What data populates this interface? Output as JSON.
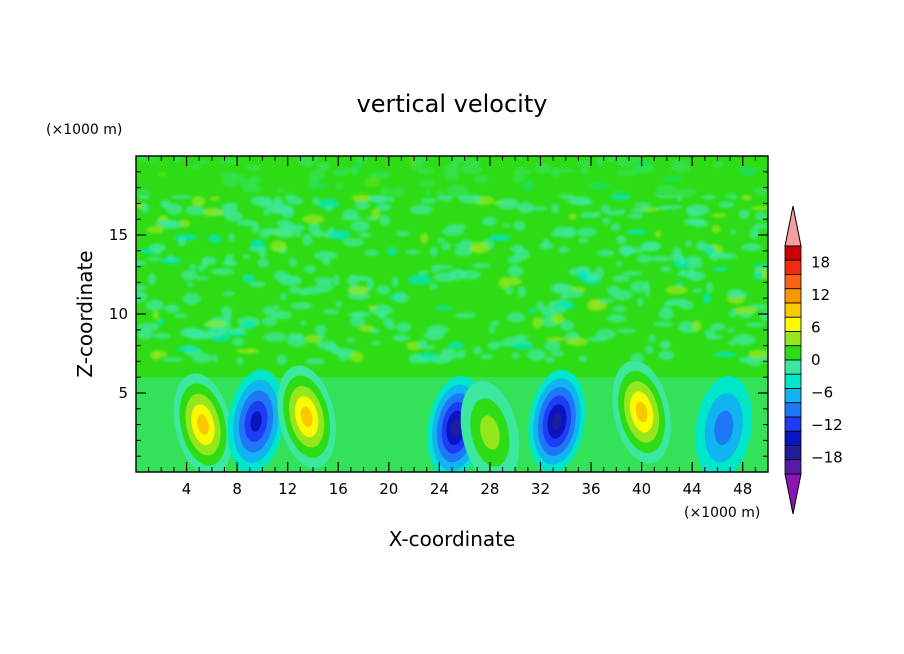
{
  "chart_data": {
    "type": "heatmap",
    "title": "vertical velocity",
    "xlabel": "X-coordinate",
    "ylabel": "Z-coordinate",
    "x_unit": "(×1000 m)",
    "y_unit": "(×1000 m)",
    "xlim": [
      0,
      50
    ],
    "ylim": [
      0,
      20
    ],
    "x_ticks": [
      4,
      8,
      12,
      16,
      20,
      24,
      28,
      32,
      36,
      40,
      44,
      48
    ],
    "y_ticks": [
      5,
      10,
      15
    ],
    "colorbar": {
      "ticks": [
        18,
        12,
        6,
        0,
        -6,
        -12,
        -18
      ],
      "levels": [
        -21,
        -18,
        -15,
        -12,
        -9,
        -6,
        -3,
        0,
        3,
        6,
        9,
        12,
        15,
        18,
        21
      ],
      "colors": [
        "#5a1aa6",
        "#1e1e9a",
        "#0a14c0",
        "#1e3cf5",
        "#1e78f5",
        "#10b4f0",
        "#00e6c8",
        "#3ce8a0",
        "#2ddc14",
        "#96e61e",
        "#fafa00",
        "#fac800",
        "#fa9600",
        "#fa6414",
        "#f52814",
        "#c80000"
      ],
      "under_color": "#8c14b4",
      "over_color": "#f5a0a0"
    },
    "features": [
      {
        "x": 5.3,
        "z": 3.0,
        "peak": 14
      },
      {
        "x": 9.5,
        "z": 3.2,
        "peak": -13
      },
      {
        "x": 13.5,
        "z": 3.5,
        "peak": 13
      },
      {
        "x": 25.3,
        "z": 2.8,
        "peak": -17
      },
      {
        "x": 28.0,
        "z": 2.5,
        "peak": 8
      },
      {
        "x": 33.3,
        "z": 3.2,
        "peak": -16
      },
      {
        "x": 40.0,
        "z": 3.8,
        "peak": 13
      },
      {
        "x": 46.5,
        "z": 2.8,
        "peak": -7
      }
    ]
  }
}
